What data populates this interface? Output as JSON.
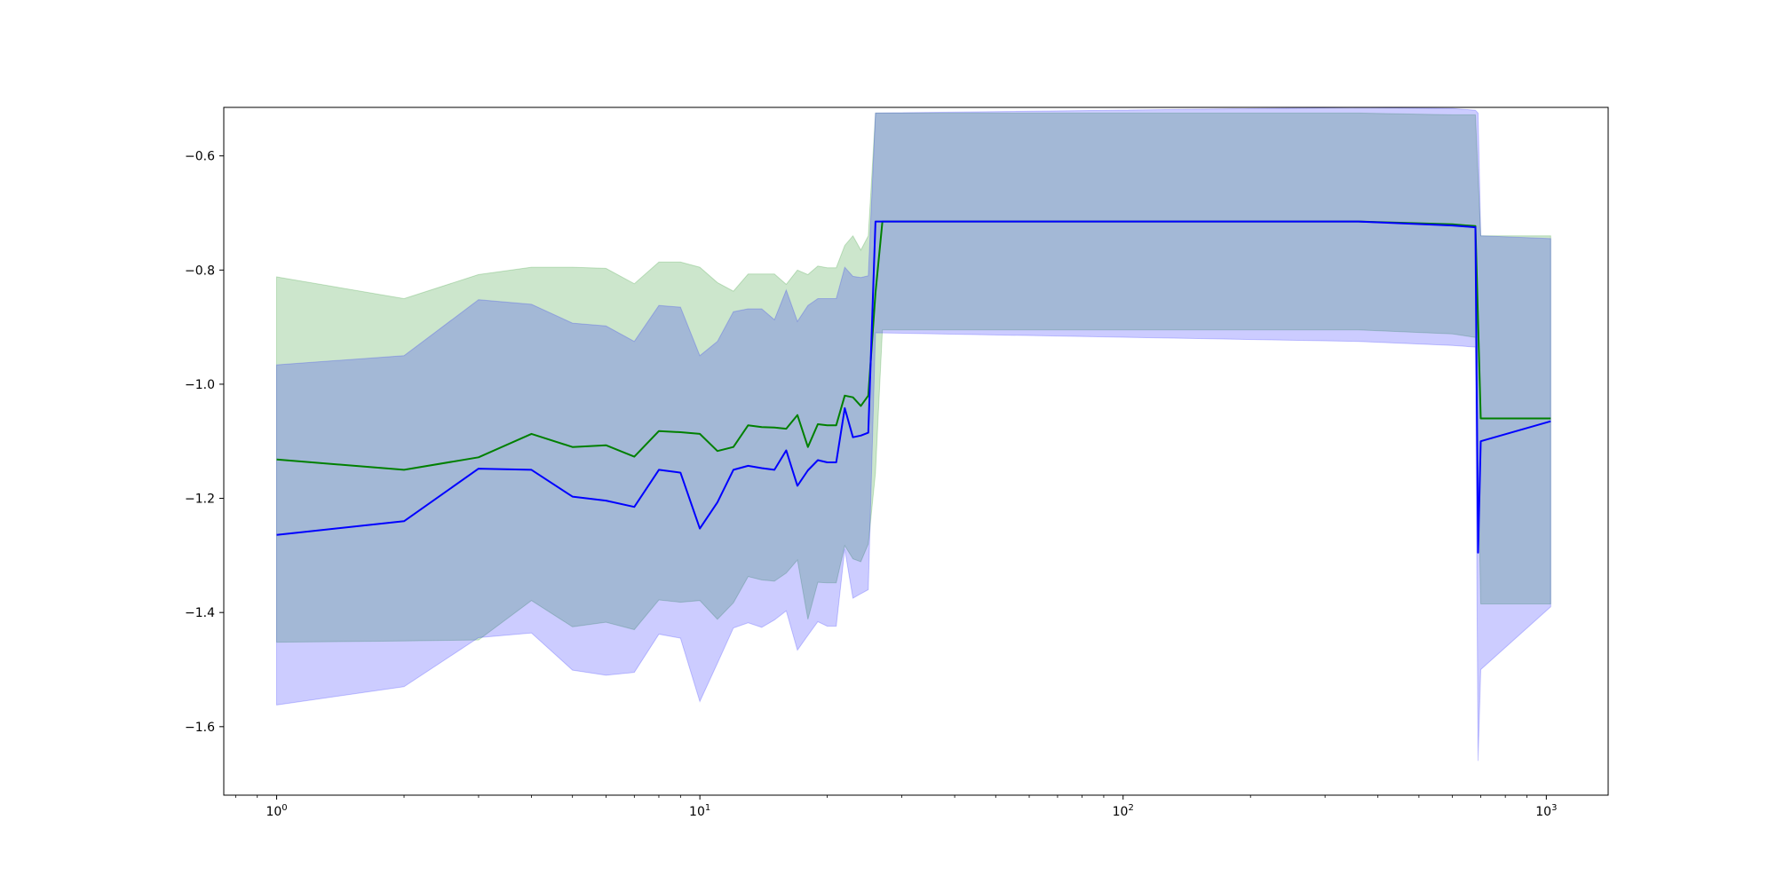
{
  "chart_data": {
    "type": "line",
    "title": "",
    "xlabel": "",
    "ylabel": "",
    "xscale": "log",
    "xlim": [
      0.75,
      1400
    ],
    "ylim": [
      -1.72,
      -0.515
    ],
    "grid": false,
    "x_ticks": [
      {
        "value": 1,
        "base": "10",
        "exp": "0"
      },
      {
        "value": 10,
        "base": "10",
        "exp": "1"
      },
      {
        "value": 100,
        "base": "10",
        "exp": "2"
      },
      {
        "value": 1000,
        "base": "10",
        "exp": "3"
      }
    ],
    "y_ticks": [
      {
        "value": -0.6,
        "label": "−0.6"
      },
      {
        "value": -0.8,
        "label": "−0.8"
      },
      {
        "value": -1.0,
        "label": "−1.0"
      },
      {
        "value": -1.2,
        "label": "−1.2"
      },
      {
        "value": -1.4,
        "label": "−1.4"
      },
      {
        "value": -1.6,
        "label": "−1.6"
      }
    ],
    "series": [
      {
        "color": "#008000",
        "band_color": "#008000",
        "band_opacity": 0.2,
        "x": [
          1,
          2,
          3,
          4,
          5,
          6,
          7,
          8,
          9,
          10,
          11,
          12,
          13,
          14,
          15,
          16,
          17,
          18,
          19,
          20,
          21,
          22,
          23,
          24,
          25,
          26,
          27,
          360,
          600,
          680,
          700,
          720,
          1024
        ],
        "y": [
          -1.132,
          -1.15,
          -1.128,
          -1.087,
          -1.11,
          -1.107,
          -1.127,
          -1.082,
          -1.084,
          -1.087,
          -1.117,
          -1.11,
          -1.072,
          -1.075,
          -1.076,
          -1.078,
          -1.054,
          -1.11,
          -1.07,
          -1.072,
          -1.072,
          -1.02,
          -1.023,
          -1.038,
          -1.02,
          -0.84,
          -0.715,
          -0.715,
          -0.72,
          -0.723,
          -1.06,
          -1.06,
          -1.06
        ],
        "upper": [
          -0.812,
          -0.85,
          -0.808,
          -0.795,
          -0.795,
          -0.797,
          -0.824,
          -0.786,
          -0.786,
          -0.795,
          -0.822,
          -0.837,
          -0.807,
          -0.807,
          -0.807,
          -0.825,
          -0.8,
          -0.808,
          -0.793,
          -0.796,
          -0.796,
          -0.757,
          -0.74,
          -0.765,
          -0.74,
          -0.525,
          -0.525,
          -0.525,
          -0.528,
          -0.528,
          -0.74,
          -0.74,
          -0.74
        ],
        "lower": [
          -1.452,
          -1.45,
          -1.448,
          -1.379,
          -1.425,
          -1.417,
          -1.43,
          -1.378,
          -1.382,
          -1.379,
          -1.412,
          -1.383,
          -1.337,
          -1.343,
          -1.345,
          -1.331,
          -1.308,
          -1.412,
          -1.347,
          -1.348,
          -1.348,
          -1.283,
          -1.306,
          -1.311,
          -1.28,
          -1.155,
          -0.905,
          -0.905,
          -0.912,
          -0.918,
          -1.385,
          -1.385,
          -1.385
        ]
      },
      {
        "color": "#0000ff",
        "band_color": "#0000ff",
        "band_opacity": 0.2,
        "x": [
          1,
          2,
          3,
          4,
          5,
          6,
          7,
          8,
          9,
          10,
          11,
          12,
          13,
          14,
          15,
          16,
          17,
          18,
          19,
          20,
          21,
          22,
          23,
          24,
          25,
          26,
          360,
          600,
          680,
          690,
          700,
          1024
        ],
        "y": [
          -1.264,
          -1.24,
          -1.148,
          -1.15,
          -1.197,
          -1.204,
          -1.215,
          -1.15,
          -1.155,
          -1.253,
          -1.207,
          -1.15,
          -1.143,
          -1.147,
          -1.15,
          -1.116,
          -1.178,
          -1.151,
          -1.133,
          -1.137,
          -1.137,
          -1.042,
          -1.093,
          -1.09,
          -1.085,
          -0.715,
          -0.715,
          -0.722,
          -0.725,
          -1.295,
          -1.1,
          -1.065
        ],
        "upper": [
          -0.966,
          -0.95,
          -0.852,
          -0.86,
          -0.893,
          -0.898,
          -0.925,
          -0.862,
          -0.865,
          -0.95,
          -0.925,
          -0.873,
          -0.868,
          -0.868,
          -0.887,
          -0.835,
          -0.89,
          -0.862,
          -0.85,
          -0.85,
          -0.85,
          -0.795,
          -0.811,
          -0.813,
          -0.81,
          -0.525,
          -0.515,
          -0.517,
          -0.52,
          -0.525,
          -0.74,
          -0.745
        ],
        "lower": [
          -1.562,
          -1.53,
          -1.444,
          -1.436,
          -1.501,
          -1.51,
          -1.505,
          -1.438,
          -1.445,
          -1.556,
          -1.489,
          -1.427,
          -1.418,
          -1.426,
          -1.413,
          -1.397,
          -1.466,
          -1.44,
          -1.416,
          -1.424,
          -1.424,
          -1.289,
          -1.375,
          -1.367,
          -1.36,
          -0.91,
          -0.925,
          -0.932,
          -0.935,
          -1.66,
          -1.5,
          -1.39
        ]
      }
    ]
  }
}
